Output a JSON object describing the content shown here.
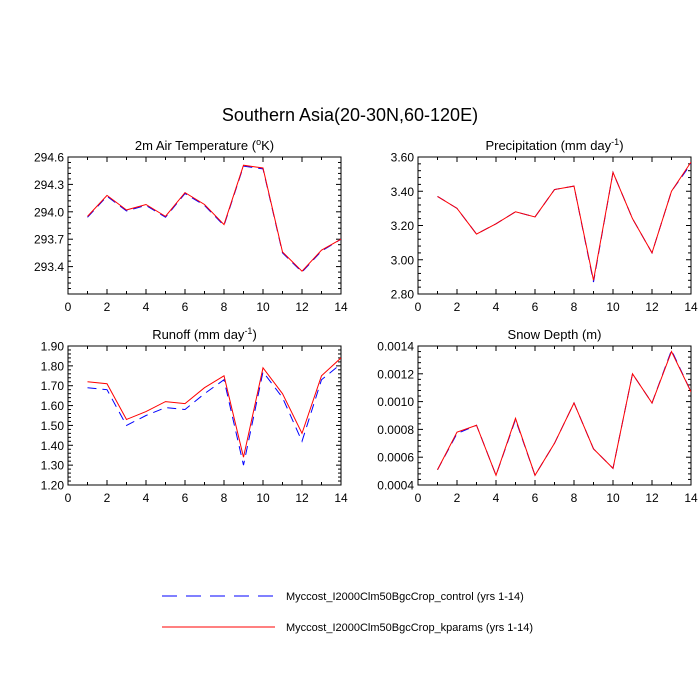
{
  "figure_title": "Southern Asia(20-30N,60-120E)",
  "colors": {
    "control": "#0000ff",
    "kparams": "#ff0000",
    "axis": "#000000"
  },
  "legend": [
    {
      "label": "Myccost_I2000Clm50BgcCrop_control (yrs 1-14)",
      "color": "#0000ff",
      "style": "dashed"
    },
    {
      "label": "Myccost_I2000Clm50BgcCrop_kparams (yrs 1-14)",
      "color": "#ff0000",
      "style": "solid"
    }
  ],
  "chart_data": [
    {
      "type": "line",
      "title": "2m Air Temperature (",
      "title_sup": "o",
      "title_after": "K)",
      "x": [
        1,
        2,
        3,
        4,
        5,
        6,
        7,
        8,
        9,
        10,
        11,
        12,
        13,
        14
      ],
      "xlim": [
        0,
        14
      ],
      "xticks": [
        "0",
        "2",
        "4",
        "6",
        "8",
        "10",
        "12",
        "14"
      ],
      "ylim": [
        293.1,
        294.6
      ],
      "yticks": [
        "293.4",
        "293.7",
        "294.0",
        "294.3",
        "294.6"
      ],
      "series": [
        {
          "name": "Myccost_I2000Clm50BgcCrop_control (yrs 1-14)",
          "values": [
            293.94,
            294.17,
            294.01,
            294.07,
            293.94,
            294.2,
            294.07,
            293.85,
            294.5,
            294.47,
            293.55,
            293.34,
            293.57,
            293.7
          ]
        },
        {
          "name": "Myccost_I2000Clm50BgcCrop_kparams (yrs 1-14)",
          "values": [
            293.95,
            294.18,
            294.02,
            294.08,
            293.95,
            294.21,
            294.08,
            293.86,
            294.51,
            294.48,
            293.56,
            293.35,
            293.58,
            293.7
          ]
        }
      ]
    },
    {
      "type": "line",
      "title": "Precipitation (mm day",
      "title_sup": "-1",
      "title_after": ")",
      "x": [
        1,
        2,
        3,
        4,
        5,
        6,
        7,
        8,
        9,
        10,
        11,
        12,
        13,
        14
      ],
      "xlim": [
        0,
        14
      ],
      "xticks": [
        "0",
        "2",
        "4",
        "6",
        "8",
        "10",
        "12",
        "14"
      ],
      "ylim": [
        2.8,
        3.6
      ],
      "yticks": [
        "2.80",
        "3.00",
        "3.20",
        "3.40",
        "3.60"
      ],
      "series": [
        {
          "name": "Myccost_I2000Clm50BgcCrop_control (yrs 1-14)",
          "values": [
            3.37,
            3.3,
            3.15,
            3.21,
            3.28,
            3.25,
            3.41,
            3.43,
            2.87,
            3.51,
            3.24,
            3.04,
            3.4,
            3.56
          ]
        },
        {
          "name": "Myccost_I2000Clm50BgcCrop_kparams (yrs 1-14)",
          "values": [
            3.37,
            3.3,
            3.15,
            3.21,
            3.28,
            3.25,
            3.41,
            3.43,
            2.88,
            3.51,
            3.24,
            3.04,
            3.4,
            3.57
          ]
        }
      ]
    },
    {
      "type": "line",
      "title": "Runoff (mm day",
      "title_sup": "-1",
      "title_after": ")",
      "x": [
        1,
        2,
        3,
        4,
        5,
        6,
        7,
        8,
        9,
        10,
        11,
        12,
        13,
        14
      ],
      "xlim": [
        0,
        14
      ],
      "xticks": [
        "0",
        "2",
        "4",
        "6",
        "8",
        "10",
        "12",
        "14"
      ],
      "ylim": [
        1.2,
        1.9
      ],
      "yticks": [
        "1.20",
        "1.30",
        "1.40",
        "1.50",
        "1.60",
        "1.70",
        "1.80",
        "1.90"
      ],
      "series": [
        {
          "name": "Myccost_I2000Clm50BgcCrop_control (yrs 1-14)",
          "values": [
            1.69,
            1.68,
            1.5,
            1.55,
            1.59,
            1.58,
            1.66,
            1.73,
            1.3,
            1.77,
            1.64,
            1.42,
            1.73,
            1.81
          ]
        },
        {
          "name": "Myccost_I2000Clm50BgcCrop_kparams (yrs 1-14)",
          "values": [
            1.72,
            1.71,
            1.53,
            1.57,
            1.62,
            1.61,
            1.69,
            1.75,
            1.34,
            1.79,
            1.66,
            1.46,
            1.75,
            1.84
          ]
        }
      ]
    },
    {
      "type": "line",
      "title": "Snow Depth (m)",
      "title_sup": "",
      "title_after": "",
      "x": [
        1,
        2,
        3,
        4,
        5,
        6,
        7,
        8,
        9,
        10,
        11,
        12,
        13,
        14
      ],
      "xlim": [
        0,
        14
      ],
      "xticks": [
        "0",
        "2",
        "4",
        "6",
        "8",
        "10",
        "12",
        "14"
      ],
      "ylim": [
        0.0004,
        0.0014
      ],
      "yticks": [
        "0.0004",
        "0.0006",
        "0.0008",
        "0.0010",
        "0.0012",
        "0.0014"
      ],
      "series": [
        {
          "name": "Myccost_I2000Clm50BgcCrop_control (yrs 1-14)",
          "values": [
            0.00051,
            0.00077,
            0.00083,
            0.00047,
            0.00087,
            0.00047,
            0.0007,
            0.00099,
            0.00066,
            0.00052,
            0.0012,
            0.00099,
            0.00137,
            0.00107
          ]
        },
        {
          "name": "Myccost_I2000Clm50BgcCrop_kparams (yrs 1-14)",
          "values": [
            0.00051,
            0.00078,
            0.00083,
            0.00047,
            0.00088,
            0.00047,
            0.0007,
            0.00099,
            0.00066,
            0.00052,
            0.0012,
            0.00099,
            0.00136,
            0.00107
          ]
        }
      ]
    }
  ]
}
